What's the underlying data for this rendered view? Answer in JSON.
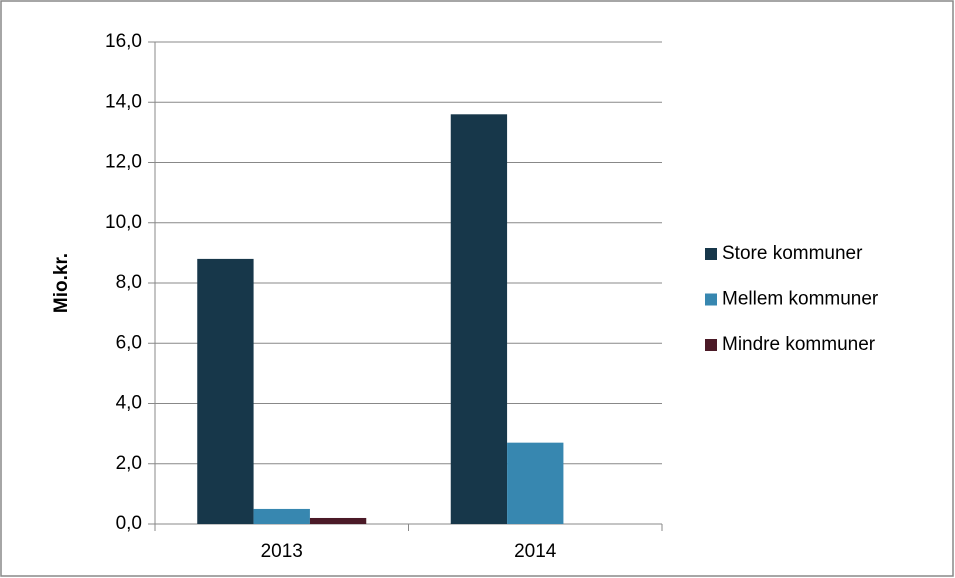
{
  "chart_data": {
    "type": "bar",
    "y_label": "Mio.kr.",
    "categories": [
      "2013",
      "2014"
    ],
    "series": [
      {
        "name": "Store kommuner",
        "color": "#17374a",
        "values": [
          8.8,
          13.6
        ]
      },
      {
        "name": "Mellem kommuner",
        "color": "#3787b0",
        "values": [
          0.5,
          2.7
        ]
      },
      {
        "name": "Mindre kommuner",
        "color": "#4b1a27",
        "values": [
          0.2,
          0
        ]
      }
    ],
    "ylim": [
      0,
      16
    ],
    "yticks": [
      {
        "value": 0,
        "label": "0,0"
      },
      {
        "value": 2,
        "label": "2,0"
      },
      {
        "value": 4,
        "label": "4,0"
      },
      {
        "value": 6,
        "label": "6,0"
      },
      {
        "value": 8,
        "label": "8,0"
      },
      {
        "value": 10,
        "label": "10,0"
      },
      {
        "value": 12,
        "label": "12,0"
      },
      {
        "value": 14,
        "label": "14,0"
      },
      {
        "value": 16,
        "label": "16,0"
      }
    ],
    "grid": true,
    "legend": "right"
  }
}
